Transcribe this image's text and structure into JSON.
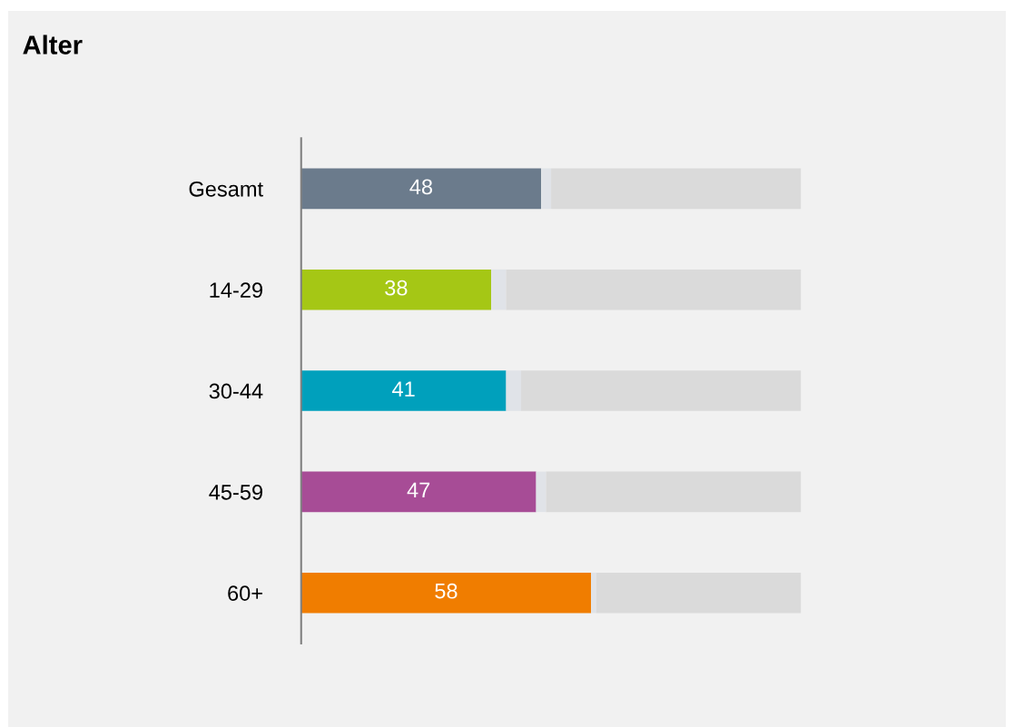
{
  "chart_data": {
    "type": "bar",
    "title": "Alter",
    "orientation": "horizontal",
    "stacked": true,
    "categories": [
      "Gesamt",
      "14-29",
      "30-44",
      "45-59",
      "60+"
    ],
    "xlim": [
      0,
      100
    ],
    "tick_labels": "y",
    "grid": false,
    "legend": false,
    "series": [
      {
        "colors": [
          "#6b7b8c",
          "#a5c715",
          "#00a0bc",
          "#a74c96",
          "#f07d00"
        ],
        "values": [
          48,
          38,
          41,
          47,
          58
        ],
        "value_labels": [
          "48",
          "38",
          "41",
          "47",
          "58"
        ]
      },
      {
        "color": "#e0e3e8",
        "values": [
          2,
          3,
          3,
          2,
          1
        ]
      },
      {
        "color": "#dadada",
        "values": [
          50,
          59,
          56,
          51,
          41
        ]
      }
    ]
  }
}
